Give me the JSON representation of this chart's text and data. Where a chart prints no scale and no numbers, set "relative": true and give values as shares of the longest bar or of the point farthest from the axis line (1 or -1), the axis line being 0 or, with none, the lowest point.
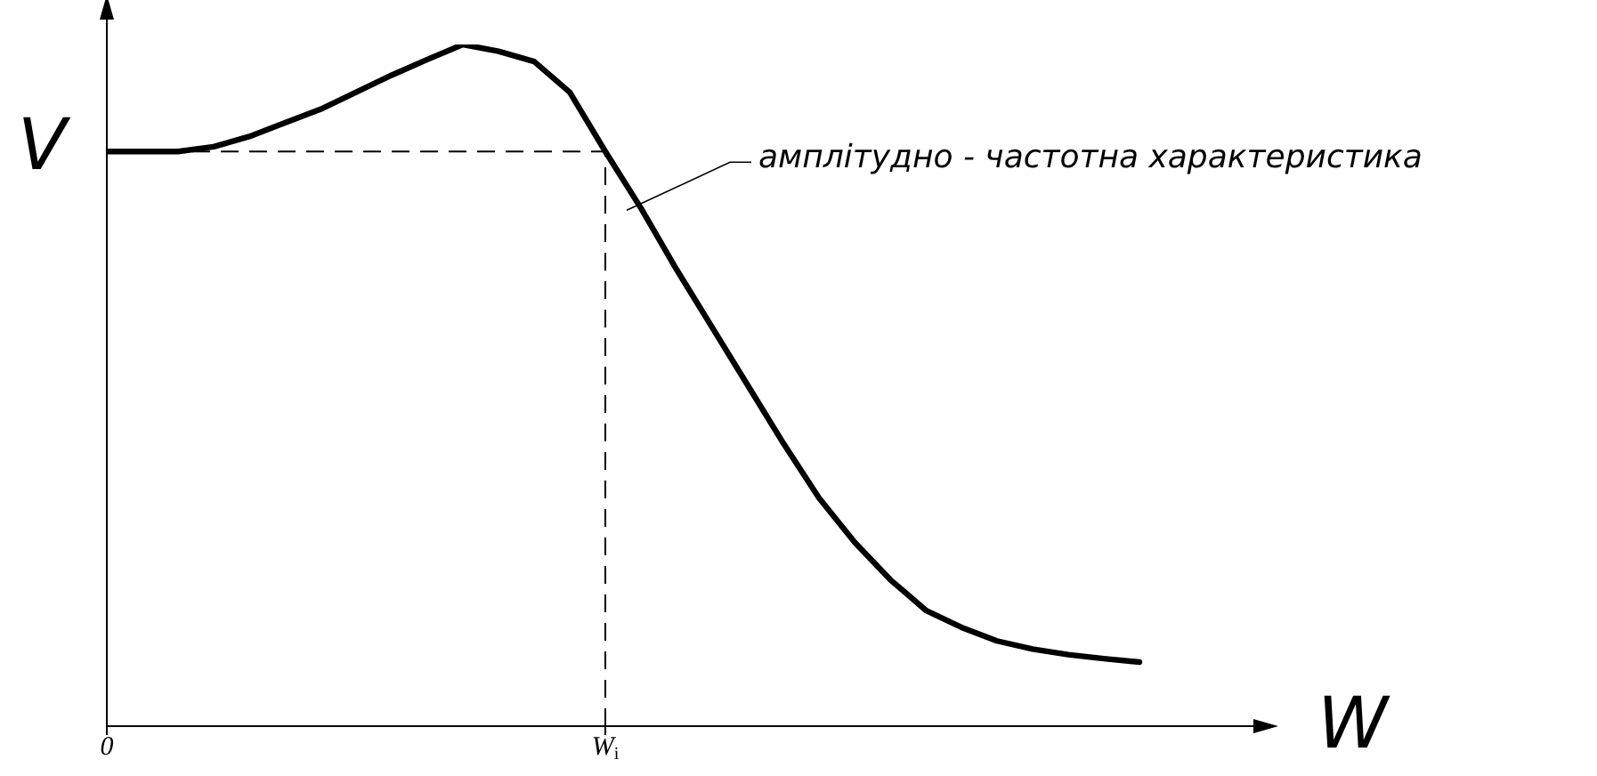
{
  "chart_data": {
    "type": "line",
    "relative": true,
    "xlabel": "W",
    "ylabel": "V",
    "categories": [
      "0",
      null,
      null,
      null,
      null,
      null,
      null,
      null,
      null,
      null,
      null,
      null,
      null,
      null,
      "W$_{i}$",
      null,
      null,
      null,
      null,
      null,
      null,
      null,
      null,
      null,
      null,
      null,
      null,
      null,
      null,
      null,
      null,
      null
    ],
    "series": [
      {
        "color": "#000000",
        "values": [
          0.843,
          0.843,
          0.843,
          0.85,
          0.865,
          0.885,
          0.905,
          0.93,
          0.955,
          0.978,
          1,
          0.99,
          0.975,
          0.93,
          0.843,
          0.76,
          0.67,
          0.585,
          0.5,
          0.415,
          0.335,
          0.27,
          0.215,
          0.17,
          0.145,
          0.125,
          0.113,
          0.105,
          0.099,
          0.094,
          null,
          null
        ]
      }
    ],
    "ref_lines": [
      {
        "axis": "y",
        "value": 0.843,
        "line_style": "dashed"
      },
      {
        "axis": "x",
        "value": "W$_{i}$",
        "line_style": "dashed"
      }
    ],
    "annotations": [
      "амплітудно - частотна характеристика"
    ],
    "grid": false,
    "legend": false,
    "marker": "none",
    "line_style": "solid"
  }
}
